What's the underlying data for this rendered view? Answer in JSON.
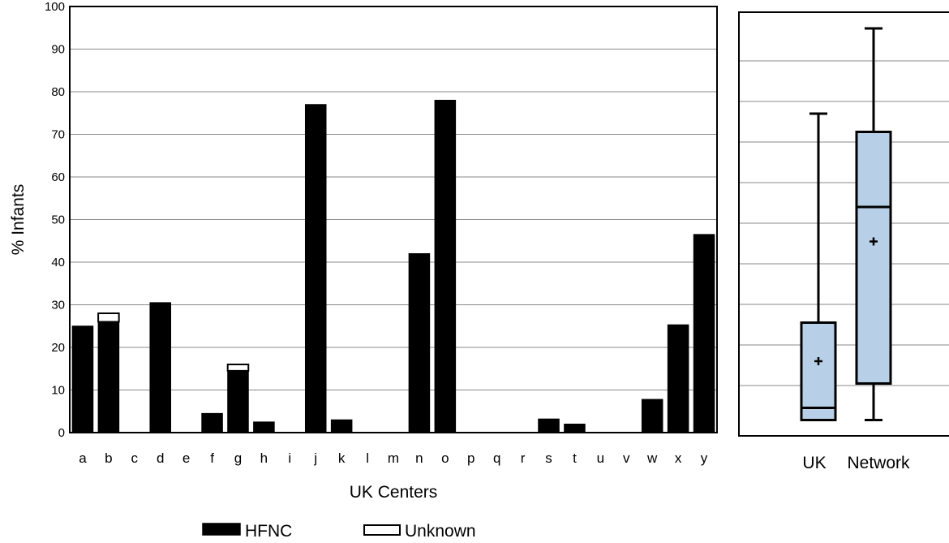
{
  "chart_data": [
    {
      "type": "bar",
      "stacked": true,
      "xlabel": "UK Centers",
      "ylabel": "% Infants",
      "ylim": [
        0,
        100
      ],
      "yticks": [
        0,
        10,
        20,
        30,
        40,
        50,
        60,
        70,
        80,
        90,
        100
      ],
      "grid": true,
      "categories": [
        "a",
        "b",
        "c",
        "d",
        "e",
        "f",
        "g",
        "h",
        "i",
        "j",
        "k",
        "l",
        "m",
        "n",
        "o",
        "p",
        "q",
        "r",
        "s",
        "t",
        "u",
        "v",
        "w",
        "x",
        "y"
      ],
      "series": [
        {
          "name": "HFNC",
          "color": "#000000",
          "values": [
            25,
            26,
            0,
            30.5,
            0,
            4.5,
            14.5,
            2.5,
            0,
            77,
            3,
            0,
            0,
            42,
            78,
            0,
            0,
            0,
            3.2,
            2,
            0,
            0,
            7.8,
            25.3,
            46.5
          ]
        },
        {
          "name": "Unknown",
          "color": "#ffffff",
          "values": [
            0,
            2,
            0,
            0,
            0,
            0,
            1.5,
            0,
            0,
            0,
            0,
            0,
            0,
            0,
            0,
            0,
            0,
            0,
            0,
            0,
            0,
            0,
            0,
            0,
            0
          ]
        }
      ],
      "legend": {
        "placement": "bottom",
        "items": [
          "HFNC",
          "Unknown"
        ]
      }
    },
    {
      "type": "box",
      "ylim": [
        0,
        100
      ],
      "grid": true,
      "categories": [
        "UK",
        "Network"
      ],
      "box_color": "#b8cfe8",
      "boxes": [
        {
          "label": "UK",
          "min": 1.5,
          "q1": 1.5,
          "median": 4.5,
          "q3": 25.5,
          "max": 77,
          "mean": 16
        },
        {
          "label": "Network",
          "min": 1.5,
          "q1": 10.5,
          "median": 54,
          "q3": 72.5,
          "max": 98,
          "mean": 45.5
        }
      ]
    }
  ]
}
